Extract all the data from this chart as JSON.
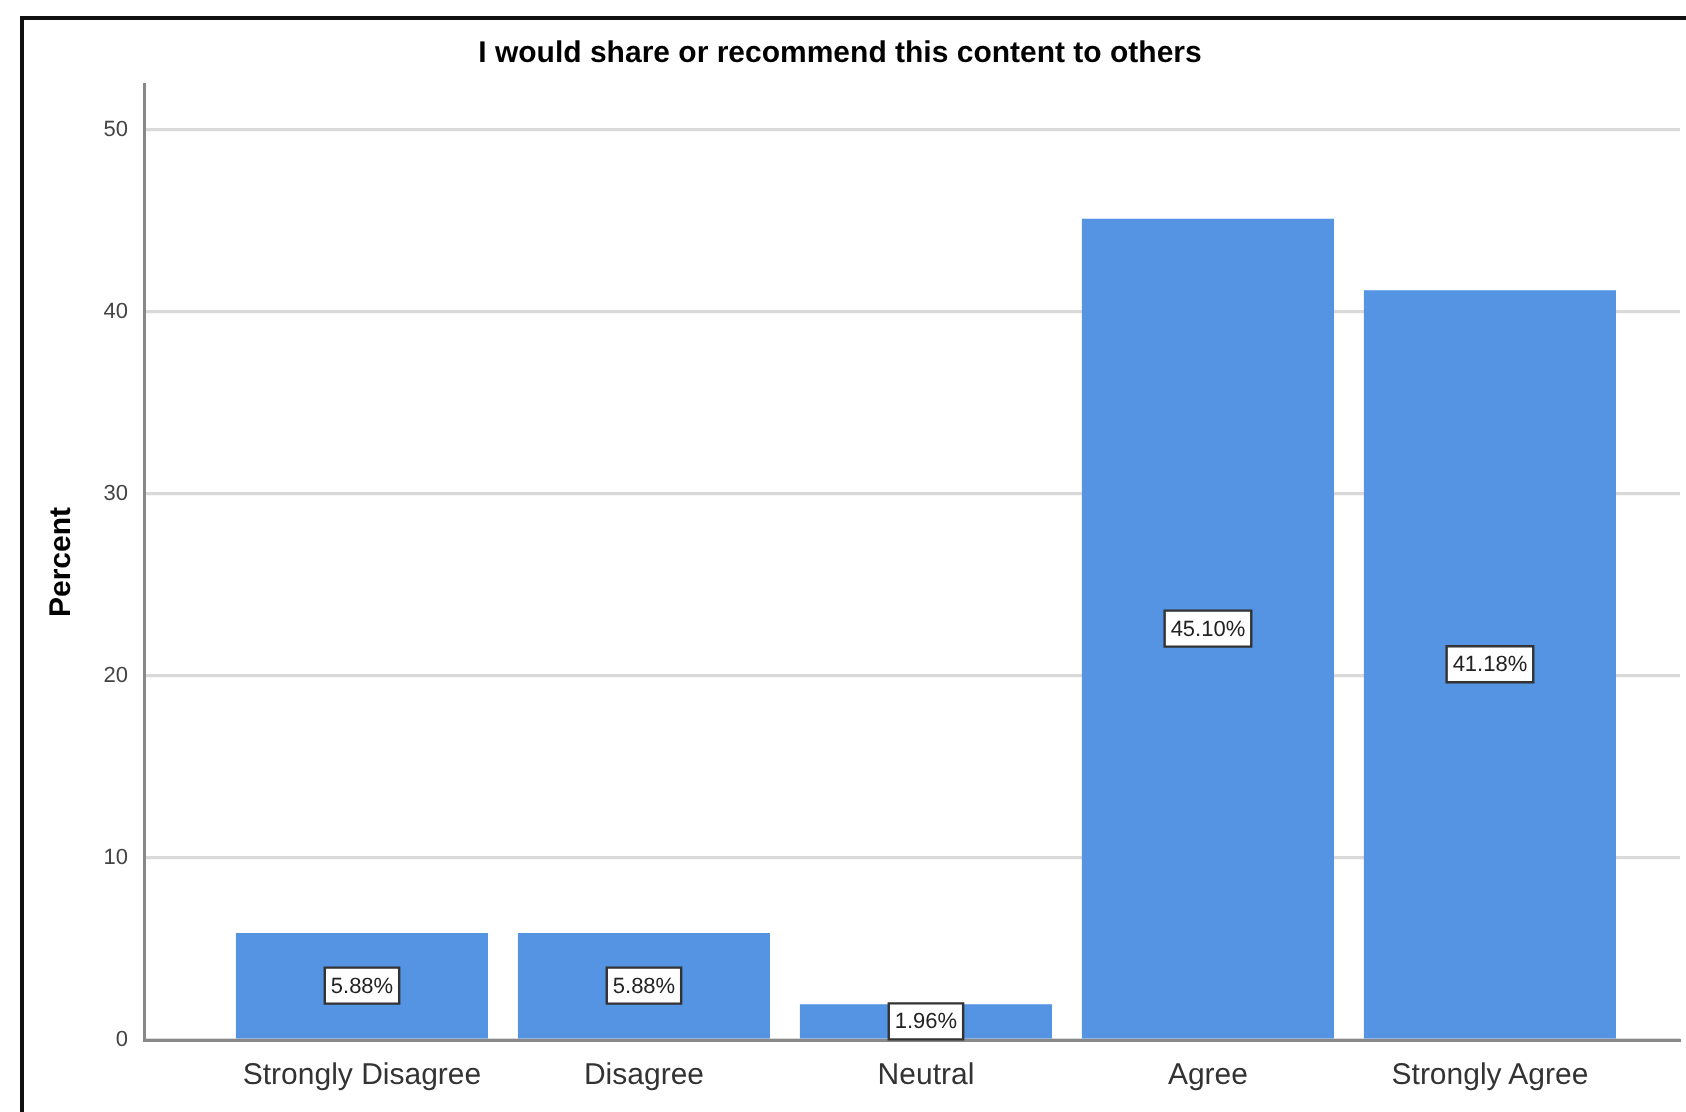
{
  "chart_data": {
    "type": "bar",
    "title": "I would share or recommend this content to others",
    "ylabel": "Percent",
    "categories": [
      "Strongly Disagree",
      "Disagree",
      "Neutral",
      "Agree",
      "Strongly Agree"
    ],
    "values": [
      5.88,
      5.88,
      1.96,
      45.1,
      41.18
    ],
    "value_labels": [
      "5.88%",
      "5.88%",
      "1.96%",
      "45.10%",
      "41.18%"
    ],
    "color": "#5494e3",
    "ylim": [
      0,
      52.5
    ],
    "yticks": [
      0,
      10,
      20,
      30,
      40,
      50
    ],
    "grid": "y"
  }
}
